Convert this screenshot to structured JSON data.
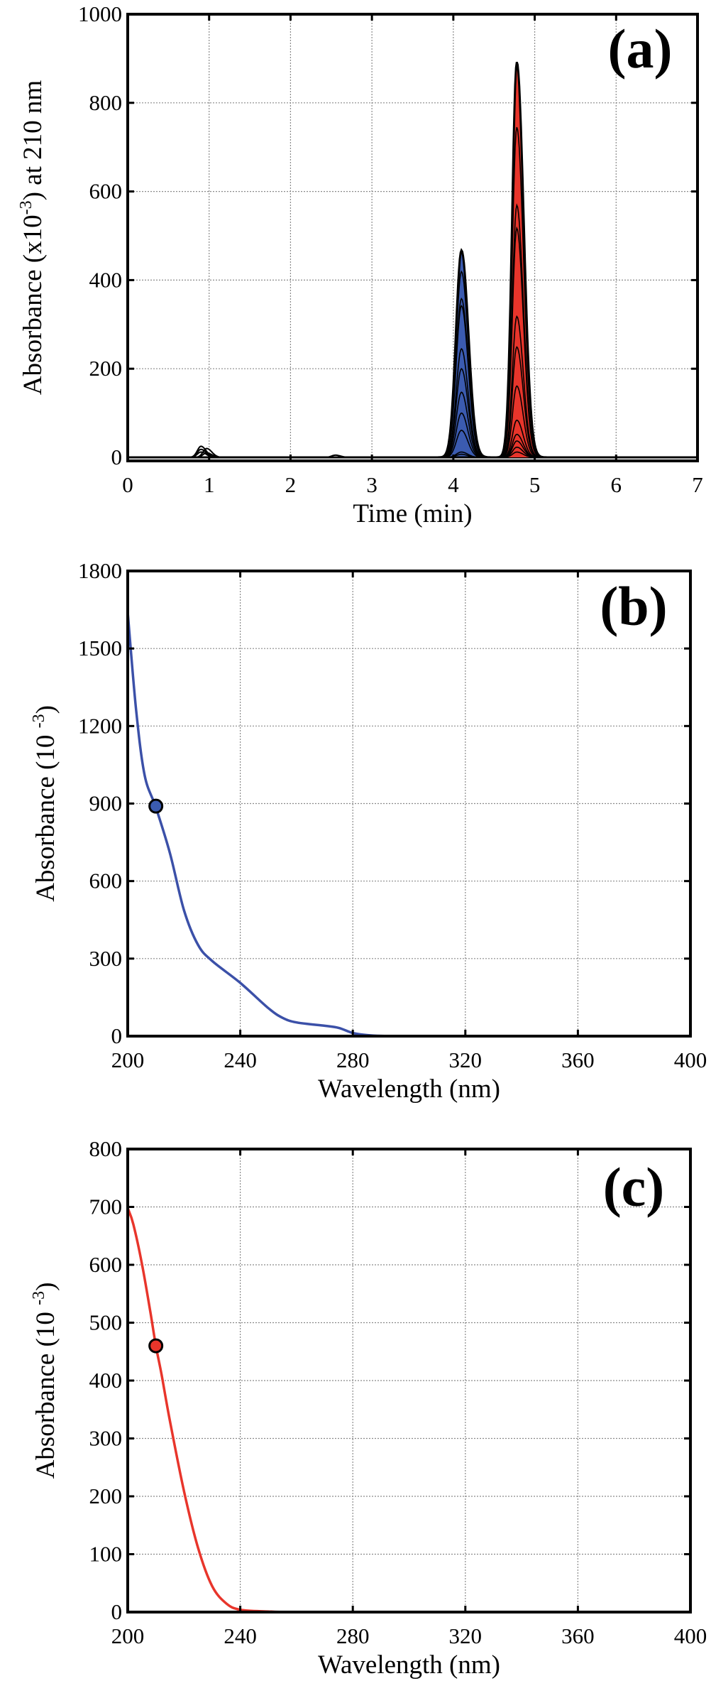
{
  "chart_data": [
    {
      "type": "line",
      "panel_label": "(a)",
      "xlabel": "Time (min)",
      "ylabel_main": "Absorbance (x10",
      "ylabel_sup": "-3",
      "ylabel_tail": ") at 210 nm",
      "xlim": [
        0,
        7
      ],
      "ylim": [
        -8,
        1000
      ],
      "xticks": [
        0,
        1,
        2,
        3,
        4,
        5,
        6,
        7
      ],
      "yticks": [
        0,
        200,
        400,
        600,
        800,
        1000
      ],
      "grid": true,
      "line_color": "#000000",
      "peaks": [
        {
          "retention_time": 4.1,
          "fill_color": "#3b5bb0",
          "heights": [
            467,
            419,
            358,
            342,
            245,
            200,
            147,
            100,
            61,
            12,
            7
          ]
        },
        {
          "retention_time": 4.78,
          "fill_color": "#e8352b",
          "heights": [
            892,
            745,
            569,
            517,
            318,
            249,
            161,
            84,
            52,
            37,
            23,
            12
          ]
        }
      ],
      "minor_peaks": [
        {
          "retention_time": 0.9,
          "heights": [
            25,
            18,
            12
          ]
        },
        {
          "retention_time": 0.97,
          "heights": [
            20,
            10
          ]
        },
        {
          "retention_time": 2.55,
          "heights": [
            5
          ]
        }
      ]
    },
    {
      "type": "line",
      "panel_label": "(b)",
      "xlabel": "Wavelength (nm)",
      "ylabel_main": "Absorbance (10 ",
      "ylabel_sup": "-3",
      "ylabel_tail": ")",
      "xlim": [
        200,
        400
      ],
      "ylim": [
        0,
        1800
      ],
      "xticks": [
        200,
        240,
        280,
        320,
        360,
        400
      ],
      "yticks": [
        0,
        300,
        600,
        900,
        1200,
        1500,
        1800
      ],
      "grid": true,
      "line_color": "#3b50a8",
      "x": [
        200,
        203,
        206,
        210,
        215,
        220,
        225,
        230,
        240,
        250,
        255,
        260,
        270,
        275,
        280,
        285,
        290,
        300,
        320,
        360,
        400
      ],
      "y": [
        1640,
        1260,
        1010,
        885,
        708,
        487,
        353,
        291,
        206,
        108,
        71,
        53,
        40,
        32,
        12,
        4,
        1,
        0,
        0,
        0,
        0
      ],
      "marker": {
        "x": 210,
        "y": 890,
        "color": "#3b5bb0"
      }
    },
    {
      "type": "line",
      "panel_label": "(c)",
      "xlabel": "Wavelength (nm)",
      "ylabel_main": "Absorbance (10 ",
      "ylabel_sup": "-3",
      "ylabel_tail": ")",
      "xlim": [
        200,
        400
      ],
      "ylim": [
        0,
        800
      ],
      "xticks": [
        200,
        240,
        280,
        320,
        360,
        400
      ],
      "yticks": [
        0,
        100,
        200,
        300,
        400,
        500,
        600,
        700,
        800
      ],
      "grid": true,
      "line_color": "#e8352b",
      "x": [
        200,
        202,
        205,
        208,
        210,
        212,
        215,
        220,
        225,
        230,
        235,
        240,
        250,
        260,
        300,
        400
      ],
      "y": [
        698,
        670,
        603,
        520,
        460,
        411,
        330,
        209,
        111,
        45,
        15,
        4,
        1,
        0,
        0,
        0
      ],
      "marker": {
        "x": 210,
        "y": 460,
        "color": "#e8352b"
      }
    }
  ]
}
